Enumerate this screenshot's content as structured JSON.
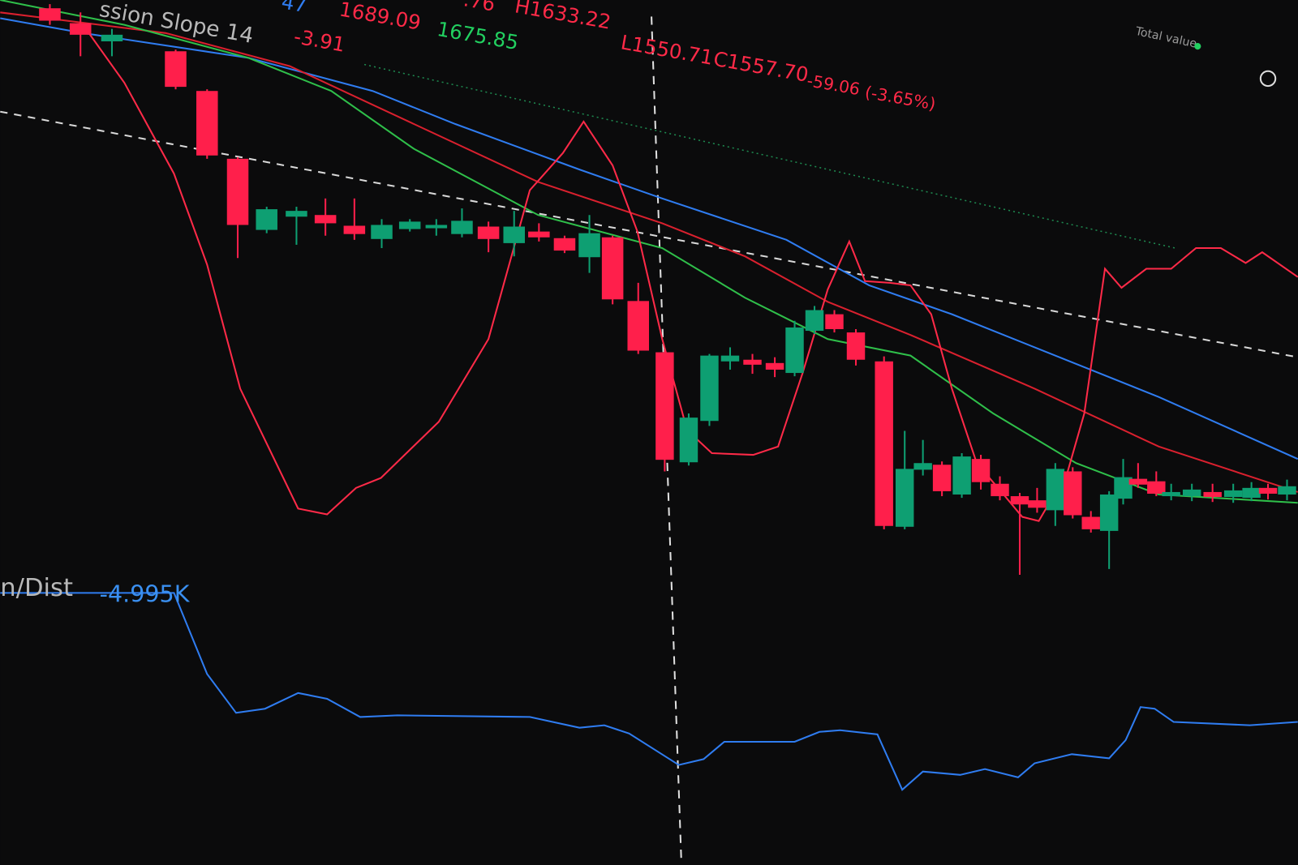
{
  "header": {
    "partial_left": "47",
    "indicator": "ssion Slope 14",
    "indicator_value": "-3.91",
    "open": "1689.09",
    "value_green": "1675.85",
    "partial_mid": ".76",
    "high": "H1633.22",
    "low": "L1550.71",
    "close": "C1557.70",
    "change": "-59.06",
    "change_pct": "(-3.65%)"
  },
  "panel": {
    "label": "n/Dist",
    "value": "-4.995K"
  },
  "widget": {
    "label": "Total value"
  }
}
